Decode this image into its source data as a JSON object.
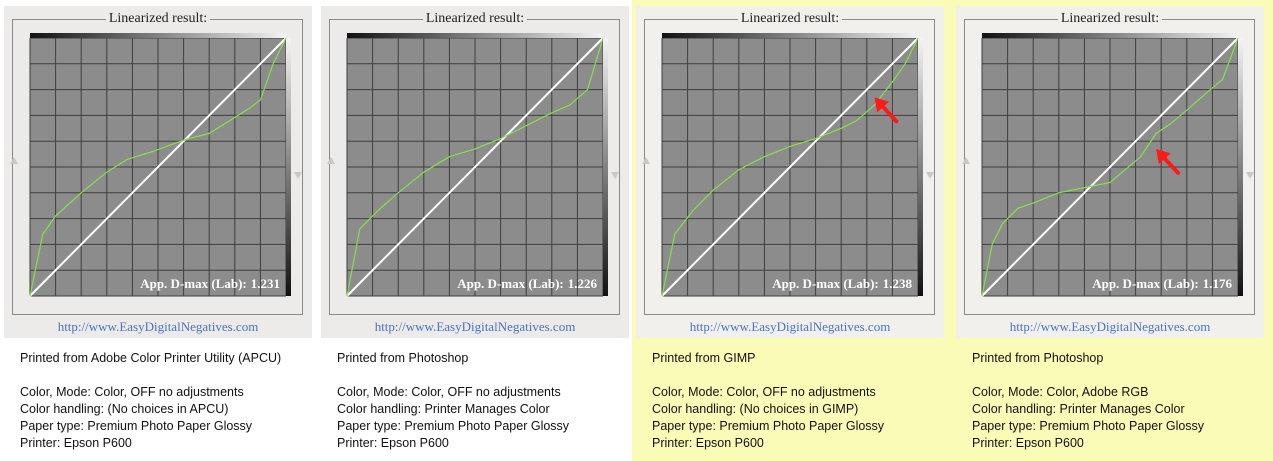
{
  "frame_title": "Linearized result:",
  "dmax_label": "App. D-max (Lab):",
  "url": "http://www.EasyDigitalNegatives.com",
  "colors": {
    "grid_bg": "#8c8c8c",
    "grid_line": "#3e3e3e",
    "reference_line": "#ffffff",
    "curve": "#86e04a",
    "arrow": "#ff1a1a",
    "highlight": "#fbfbb8",
    "url": "#4a73c9"
  },
  "chart_data": [
    {
      "type": "line",
      "grid": true,
      "xlim": [
        0,
        100
      ],
      "ylim": [
        0,
        100
      ],
      "dmax": "1.231",
      "highlighted": false,
      "arrow": null,
      "series": [
        {
          "role": "reference",
          "x": [
            0,
            100
          ],
          "y": [
            0,
            100
          ]
        },
        {
          "role": "linearized",
          "x": [
            0,
            5,
            10,
            20,
            30,
            38,
            48,
            56,
            62,
            70,
            78,
            86,
            90,
            95,
            100
          ],
          "y": [
            0,
            24,
            31,
            40,
            48,
            53,
            56,
            59,
            61,
            63,
            68,
            73,
            76,
            90,
            100
          ]
        }
      ]
    },
    {
      "type": "line",
      "grid": true,
      "xlim": [
        0,
        100
      ],
      "ylim": [
        0,
        100
      ],
      "dmax": "1.226",
      "highlighted": false,
      "arrow": null,
      "series": [
        {
          "role": "reference",
          "x": [
            0,
            100
          ],
          "y": [
            0,
            100
          ]
        },
        {
          "role": "linearized",
          "x": [
            0,
            5,
            12,
            20,
            30,
            40,
            50,
            60,
            70,
            80,
            87,
            94,
            97,
            100
          ],
          "y": [
            0,
            26,
            33,
            40,
            48,
            54,
            57,
            61,
            66,
            71,
            74,
            80,
            90,
            100
          ]
        }
      ]
    },
    {
      "type": "line",
      "grid": true,
      "xlim": [
        0,
        100
      ],
      "ylim": [
        0,
        100
      ],
      "dmax": "1.238",
      "highlighted": true,
      "arrow": {
        "x": 83,
        "y": 77
      },
      "series": [
        {
          "role": "reference",
          "x": [
            0,
            100
          ],
          "y": [
            0,
            100
          ]
        },
        {
          "role": "linearized",
          "x": [
            0,
            5,
            12,
            20,
            30,
            40,
            50,
            60,
            70,
            76,
            83,
            90,
            95,
            100
          ],
          "y": [
            0,
            24,
            33,
            41,
            49,
            54,
            58,
            61,
            65,
            68,
            74,
            83,
            90,
            100
          ]
        }
      ]
    },
    {
      "type": "line",
      "grid": true,
      "xlim": [
        0,
        100
      ],
      "ylim": [
        0,
        100
      ],
      "dmax": "1.176",
      "highlighted": true,
      "arrow": {
        "x": 68,
        "y": 57
      },
      "series": [
        {
          "role": "reference",
          "x": [
            0,
            100
          ],
          "y": [
            0,
            100
          ]
        },
        {
          "role": "linearized",
          "x": [
            0,
            4,
            8,
            14,
            20,
            30,
            40,
            50,
            56,
            62,
            68,
            74,
            80,
            88,
            94,
            100
          ],
          "y": [
            0,
            20,
            28,
            34,
            36,
            40,
            42,
            44,
            49,
            54,
            63,
            67,
            72,
            79,
            84,
            100
          ]
        }
      ]
    }
  ],
  "captions": [
    {
      "source": "Printed from Adobe Color Printer Utility (APCU)",
      "lines": [
        "Color, Mode: Color, OFF no adjustments",
        "Color handling: (No choices in APCU)",
        "Paper type: Premium Photo Paper Glossy",
        "Printer: Epson P600"
      ]
    },
    {
      "source": "Printed from Photoshop",
      "lines": [
        "Color, Mode: Color, OFF no adjustments",
        "Color handling: Printer Manages Color",
        "Paper type: Premium Photo Paper Glossy",
        "Printer: Epson P600"
      ]
    },
    {
      "source": "Printed from GIMP",
      "lines": [
        "Color, Mode: Color, OFF no adjustments",
        "Color handling: (No choices in GIMP)",
        "Paper type: Premium Photo Paper Glossy",
        "Printer: Epson P600"
      ]
    },
    {
      "source": "Printed from Photoshop",
      "lines": [
        "Color, Mode: Color, Adobe RGB",
        "Color handling: Printer Manages Color",
        "Paper type: Premium Photo Paper Glossy",
        "Printer: Epson P600"
      ]
    }
  ]
}
